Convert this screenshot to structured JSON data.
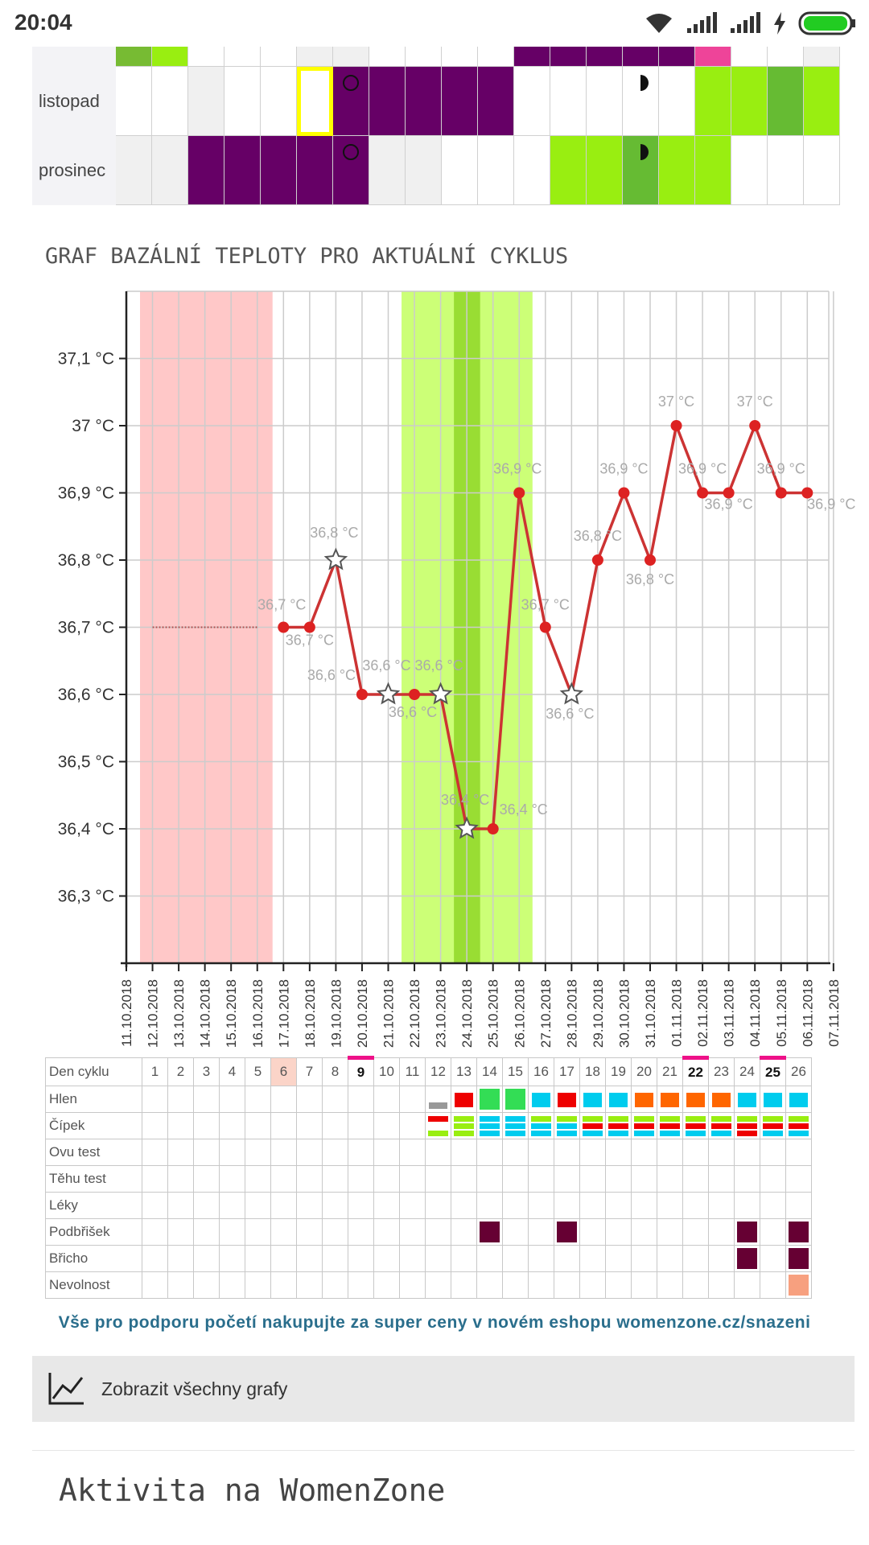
{
  "status_bar": {
    "time": "20:04"
  },
  "calendar": {
    "months": [
      {
        "name": "listopad",
        "cells": [
          "#fff",
          "#fff",
          "#f0f0f0",
          "#fff",
          "#fff",
          "#ffff00",
          "#660066",
          "#660066",
          "#660066",
          "#660066",
          "#660066",
          "#fff",
          "#fff",
          "#fff",
          "#fff",
          "#fff",
          "#99ee11",
          "#99ee11",
          "#66bb33",
          "#99ee11"
        ],
        "marks": {
          "5": "note",
          "6": "circle",
          "14": "half"
        }
      },
      {
        "name": "prosinec",
        "cells": [
          "#f0f0f0",
          "#f0f0f0",
          "#660066",
          "#660066",
          "#660066",
          "#660066",
          "#660066",
          "#f0f0f0",
          "#f0f0f0",
          "#fff",
          "#fff",
          "#fff",
          "#99ee11",
          "#99ee11",
          "#66bb33",
          "#99ee11",
          "#99ee11",
          "#fff",
          "#fff",
          "#fff"
        ],
        "marks": {
          "6": "circle",
          "14": "half"
        }
      }
    ],
    "top_cells": [
      "#77bb33",
      "#99ee11",
      "#fff",
      "#fff",
      "#fff",
      "#f0f0f0",
      "#f0f0f0",
      "#fff",
      "#fff",
      "#fff",
      "#fff",
      "#660066",
      "#660066",
      "#660066",
      "#660066",
      "#660066",
      "#ee4499",
      "#fff",
      "#fff",
      "#f0f0f0"
    ]
  },
  "chart_title": "GRAF BAZÁLNÍ TEPLOTY PRO AKTUÁLNÍ CYKLUS",
  "chart_data": {
    "type": "line",
    "title": "GRAF BAZÁLNÍ TEPLOTY PRO AKTUÁLNÍ CYKLUS",
    "y_ticks": [
      "36,3 °C",
      "36,4 °C",
      "36,5 °C",
      "36,6 °C",
      "36,7 °C",
      "36,8 °C",
      "36,9 °C",
      "37 °C",
      "37,1 °C"
    ],
    "ylim": [
      36.2,
      37.2
    ],
    "x_labels": [
      "11.10.2018",
      "12.10.2018",
      "13.10.2018",
      "14.10.2018",
      "15.10.2018",
      "16.10.2018",
      "17.10.2018",
      "18.10.2018",
      "19.10.2018",
      "20.10.2018",
      "21.10.2018",
      "22.10.2018",
      "23.10.2018",
      "24.10.2018",
      "25.10.2018",
      "26.10.2018",
      "27.10.2018",
      "28.10.2018",
      "29.10.2018",
      "30.10.2018",
      "31.10.2018",
      "01.11.2018",
      "02.11.2018",
      "03.11.2018",
      "04.11.2018",
      "05.11.2018",
      "06.11.2018",
      "07.11.2018"
    ],
    "coverline": {
      "from_day": 1,
      "to_day": 5,
      "value": 36.7
    },
    "menstruation_days": [
      1,
      6
    ],
    "fertile_days": [
      11,
      15
    ],
    "ovulation_day": 13,
    "series": [
      {
        "points": [
          {
            "day": 6,
            "value": 36.7,
            "label": "36,7 °C",
            "star": false
          },
          {
            "day": 7,
            "value": 36.7,
            "label": "36,7 °C",
            "star": false
          },
          {
            "day": 8,
            "value": 36.8,
            "label": "36,8 °C",
            "star": true
          },
          {
            "day": 9,
            "value": 36.6,
            "label": "36,6 °C",
            "star": false
          },
          {
            "day": 10,
            "value": 36.6,
            "label": "36,6 °C",
            "star": true
          },
          {
            "day": 11,
            "value": 36.6,
            "label": "36,6 °C",
            "star": false
          },
          {
            "day": 12,
            "value": 36.6,
            "label": "36,6 °C",
            "star": true
          },
          {
            "day": 13,
            "value": 36.4,
            "label": "36,4 °C",
            "star": true
          },
          {
            "day": 14,
            "value": 36.4,
            "label": "36,4 °C",
            "star": false
          },
          {
            "day": 15,
            "value": 36.9,
            "label": "36,9 °C",
            "star": false
          },
          {
            "day": 16,
            "value": 36.7,
            "label": "36,7 °C",
            "star": false
          },
          {
            "day": 17,
            "value": 36.6,
            "label": "36,6 °C",
            "star": true
          },
          {
            "day": 18,
            "value": 36.8,
            "label": "36,8 °C",
            "star": false
          },
          {
            "day": 19,
            "value": 36.9,
            "label": "36,9 °C",
            "star": false
          },
          {
            "day": 20,
            "value": 36.8,
            "label": "36,8 °C",
            "star": false
          },
          {
            "day": 21,
            "value": 37.0,
            "label": "37 °C",
            "star": false
          },
          {
            "day": 22,
            "value": 36.9,
            "label": "36,9 °C",
            "star": false
          },
          {
            "day": 23,
            "value": 36.9,
            "label": "36,9 °C",
            "star": false
          },
          {
            "day": 24,
            "value": 37.0,
            "label": "37 °C",
            "star": false
          },
          {
            "day": 25,
            "value": 36.9,
            "label": "36,9 °C",
            "star": false
          },
          {
            "day": 26,
            "value": 36.9,
            "label": "36,9 °C",
            "star": false
          }
        ]
      }
    ]
  },
  "table": {
    "header_label": "Den cyklu",
    "days": [
      "1",
      "2",
      "3",
      "4",
      "5",
      "6",
      "7",
      "8",
      "9",
      "10",
      "11",
      "12",
      "13",
      "14",
      "15",
      "16",
      "17",
      "18",
      "19",
      "20",
      "21",
      "22",
      "23",
      "24",
      "25",
      "26"
    ],
    "highlight_day": 6,
    "marked_days": [
      9,
      22,
      25
    ],
    "rows": [
      {
        "label": "Hlen",
        "cells": {
          "12": [
            "#999999"
          ],
          "13": [
            "#ee0000"
          ],
          "14": [
            "#33dd55"
          ],
          "15": [
            "#33dd55"
          ],
          "16": [
            "#00ccee"
          ],
          "17": [
            "#ee0000"
          ],
          "18": [
            "#00ccee"
          ],
          "19": [
            "#00ccee"
          ],
          "20": [
            "#ff6600"
          ],
          "21": [
            "#ff6600"
          ],
          "22": [
            "#ff6600"
          ],
          "23": [
            "#ff6600"
          ],
          "24": [
            "#00ccee"
          ],
          "25": [
            "#00ccee"
          ],
          "26": [
            "#00ccee"
          ]
        }
      },
      {
        "label": "Čípek",
        "cells": {
          "12": [
            "#ee0000",
            "#fff",
            "#99ee11"
          ],
          "13": [
            "#99ee11",
            "#99ee11",
            "#99ee11"
          ],
          "14": [
            "#00ccee",
            "#00ccee",
            "#00ccee"
          ],
          "15": [
            "#00ccee",
            "#00ccee",
            "#00ccee"
          ],
          "16": [
            "#99ee11",
            "#00ccee",
            "#00ccee"
          ],
          "17": [
            "#99ee11",
            "#00ccee",
            "#00ccee"
          ],
          "18": [
            "#99ee11",
            "#ee0000",
            "#00ccee"
          ],
          "19": [
            "#99ee11",
            "#ee0000",
            "#00ccee"
          ],
          "20": [
            "#99ee11",
            "#ee0000",
            "#00ccee"
          ],
          "21": [
            "#99ee11",
            "#ee0000",
            "#00ccee"
          ],
          "22": [
            "#99ee11",
            "#ee0000",
            "#00ccee"
          ],
          "23": [
            "#99ee11",
            "#ee0000",
            "#00ccee"
          ],
          "24": [
            "#99ee11",
            "#ee0000",
            "#ee0000"
          ],
          "25": [
            "#99ee11",
            "#ee0000",
            "#00ccee"
          ],
          "26": [
            "#99ee11",
            "#ee0000",
            "#00ccee"
          ]
        }
      },
      {
        "label": "Ovu test",
        "cells": {}
      },
      {
        "label": "Těhu test",
        "cells": {}
      },
      {
        "label": "Léky",
        "cells": {}
      },
      {
        "label": "Podbřišek",
        "cells": {
          "14": [
            "#660033"
          ],
          "17": [
            "#660033"
          ],
          "24": [
            "#660033"
          ],
          "26": [
            "#660033"
          ]
        }
      },
      {
        "label": "Břicho",
        "cells": {
          "24": [
            "#660033"
          ],
          "26": [
            "#660033"
          ]
        }
      },
      {
        "label": "Nevolnost",
        "cells": {
          "26": [
            "#f7a07f"
          ]
        }
      }
    ]
  },
  "promo_text": "Vše pro podporu početí nakupujte za super ceny v novém eshopu womenzone.cz/snazeni",
  "show_all_label": "Zobrazit všechny grafy",
  "activity_title": "Aktivita na WomenZone"
}
